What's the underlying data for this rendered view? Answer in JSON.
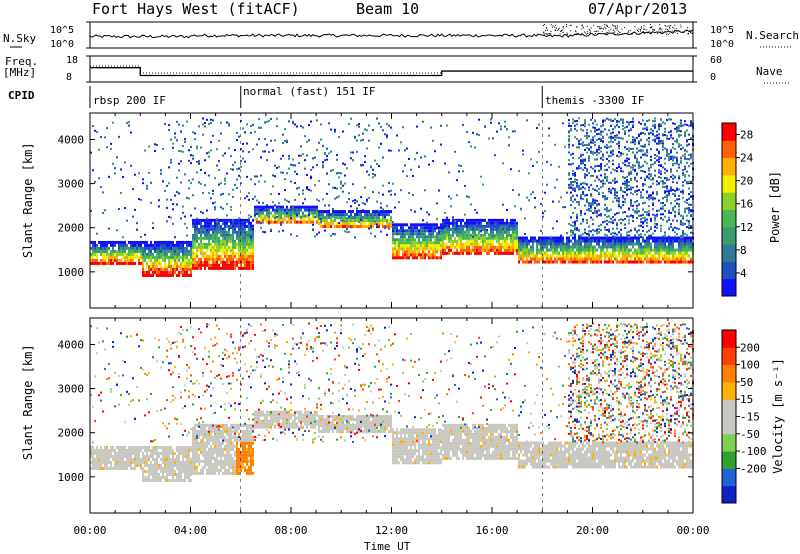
{
  "header": {
    "station": "Fort Hays West (fitACF)",
    "beam": "Beam 10",
    "date": "07/Apr/2013"
  },
  "strip_labels": {
    "nsky": "N.Sky",
    "nsky_ticks": [
      "10^5",
      "10^0"
    ],
    "nsearch": "N.Search",
    "nsearch_ticks": [
      "10^5",
      "10^0"
    ],
    "freq": "Freq.",
    "freq_unit": "[MHz]",
    "freq_ticks": [
      "18",
      "8"
    ],
    "nave": "Nave",
    "nave_ticks": [
      "60",
      "0"
    ],
    "cpid": "CPID"
  },
  "modes": [
    {
      "label": "rbsp 200 IF",
      "start_h": 0
    },
    {
      "label": "normal (fast) 151 IF",
      "start_h": 6
    },
    {
      "label": "themis -3300 IF",
      "start_h": 18
    }
  ],
  "frequency_steps": [
    {
      "start_h": 0,
      "end_h": 2,
      "mhz": 13.5
    },
    {
      "start_h": 2,
      "end_h": 14,
      "mhz": 10.5
    },
    {
      "start_h": 14,
      "end_h": 24,
      "mhz": 12.2
    }
  ],
  "chart_data": [
    {
      "type": "heatmap",
      "name": "power",
      "ylabel": "Slant Range [km]",
      "xlabel": "Time UT",
      "xlim": [
        0,
        24
      ],
      "ylim": [
        180,
        4600
      ],
      "x_ticks": [
        "00:00",
        "04:00",
        "08:00",
        "12:00",
        "16:00",
        "20:00",
        "00:00"
      ],
      "y_ticks": [
        1000,
        2000,
        3000,
        4000
      ],
      "colorbar": {
        "label": "Power [dB]",
        "ticks": [
          4,
          8,
          12,
          16,
          20,
          24,
          28
        ],
        "range": [
          0,
          30
        ],
        "colors": [
          "#1010ff",
          "#2050c0",
          "#2e7a98",
          "#3a9a70",
          "#48b850",
          "#8cd028",
          "#f0f000",
          "#ffb000",
          "#ff6000",
          "#ff0000"
        ]
      },
      "echo_bands": [
        {
          "from_h": 0,
          "to_h": 2,
          "lower_km": 1200,
          "upper_km": 1700
        },
        {
          "from_h": 2,
          "to_h": 4,
          "lower_km": 950,
          "upper_km": 1700
        },
        {
          "from_h": 4,
          "to_h": 6.5,
          "lower_km": 1100,
          "upper_km": 2200
        },
        {
          "from_h": 6.5,
          "to_h": 9,
          "lower_km": 2100,
          "upper_km": 2500
        },
        {
          "from_h": 9,
          "to_h": 12,
          "lower_km": 2000,
          "upper_km": 2400
        },
        {
          "from_h": 12,
          "to_h": 14,
          "lower_km": 1300,
          "upper_km": 2100
        },
        {
          "from_h": 14,
          "to_h": 17,
          "lower_km": 1400,
          "upper_km": 2200
        },
        {
          "from_h": 17,
          "to_h": 24,
          "lower_km": 1200,
          "upper_km": 1800
        }
      ]
    },
    {
      "type": "heatmap",
      "name": "velocity",
      "ylabel": "Slant Range [km]",
      "xlabel": "Time UT",
      "xlim": [
        0,
        24
      ],
      "ylim": [
        180,
        4600
      ],
      "x_ticks": [
        "00:00",
        "04:00",
        "08:00",
        "12:00",
        "16:00",
        "20:00",
        "00:00"
      ],
      "y_ticks": [
        1000,
        2000,
        3000,
        4000
      ],
      "colorbar": {
        "label": "Velocity [m s⁻¹]",
        "ticks": [
          200,
          100,
          50,
          15,
          -15,
          -50,
          -100,
          -200
        ],
        "colors": [
          "#1020c8",
          "#2060d8",
          "#30a030",
          "#80d050",
          "#c8c8c0",
          "#c8c8c0",
          "#ffb000",
          "#ff8000",
          "#ff4000",
          "#ff0000"
        ]
      }
    }
  ]
}
